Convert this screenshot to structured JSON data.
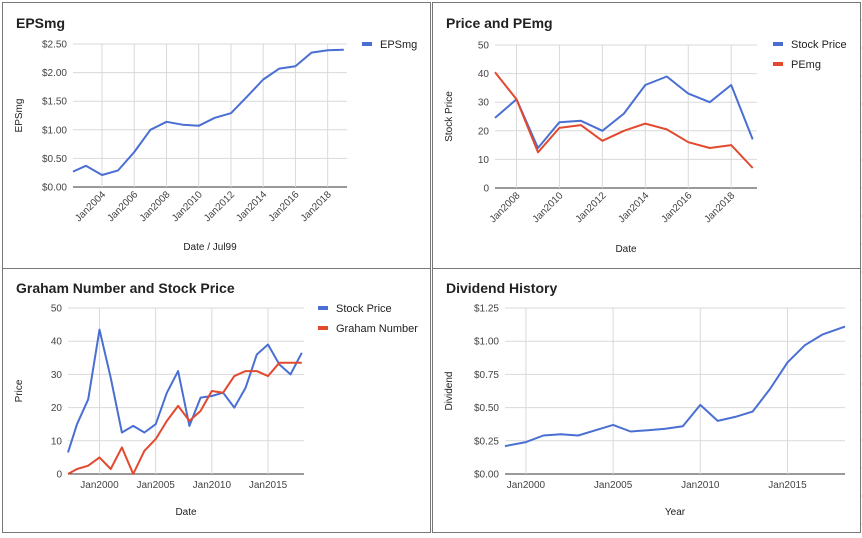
{
  "colors": {
    "blue": "#4a6fd3",
    "red": "#e2492f",
    "grid": "#d9d9d9",
    "border": "#777777"
  },
  "chart_data": [
    {
      "type": "line",
      "title": "EPSmg",
      "xlabel": "Date / Jul99",
      "ylabel": "EPSmg",
      "xlim": [
        2002.2,
        2019.2
      ],
      "ylim": [
        0,
        2.5
      ],
      "y_ticks": [
        {
          "v": 0,
          "label": "$0.00"
        },
        {
          "v": 0.5,
          "label": "$0.50"
        },
        {
          "v": 1,
          "label": "$1.00"
        },
        {
          "v": 1.5,
          "label": "$1.50"
        },
        {
          "v": 2,
          "label": "$2.00"
        },
        {
          "v": 2.5,
          "label": "$2.50"
        }
      ],
      "x_ticks": [
        {
          "v": 2004,
          "label": "Jan2004"
        },
        {
          "v": 2006,
          "label": "Jan2006"
        },
        {
          "v": 2008,
          "label": "Jan2008"
        },
        {
          "v": 2010,
          "label": "Jan2010"
        },
        {
          "v": 2012,
          "label": "Jan2012"
        },
        {
          "v": 2014,
          "label": "Jan2014"
        },
        {
          "v": 2016,
          "label": "Jan2016"
        },
        {
          "v": 2018,
          "label": "Jan2018"
        }
      ],
      "x_tick_rotate": true,
      "legend": "right",
      "series": [
        {
          "name": "EPSmg",
          "color": "#4a6fd3",
          "x": [
            2002.2,
            2003,
            2004,
            2005,
            2006,
            2007,
            2008,
            2009,
            2010,
            2011,
            2012,
            2013,
            2014,
            2015,
            2016,
            2017,
            2018,
            2019
          ],
          "y": [
            0.27,
            0.37,
            0.21,
            0.29,
            0.61,
            1.0,
            1.14,
            1.09,
            1.07,
            1.21,
            1.29,
            1.58,
            1.88,
            2.07,
            2.11,
            2.35,
            2.39,
            2.4
          ]
        }
      ]
    },
    {
      "type": "line",
      "title": "Price and PEmg",
      "xlabel": "Date",
      "ylabel": "Stock Price",
      "xlim": [
        2007,
        2019.2
      ],
      "ylim": [
        0,
        50
      ],
      "y_ticks": [
        {
          "v": 0,
          "label": "0"
        },
        {
          "v": 10,
          "label": "10"
        },
        {
          "v": 20,
          "label": "20"
        },
        {
          "v": 30,
          "label": "30"
        },
        {
          "v": 40,
          "label": "40"
        },
        {
          "v": 50,
          "label": "50"
        }
      ],
      "x_ticks": [
        {
          "v": 2008,
          "label": "Jan2008"
        },
        {
          "v": 2010,
          "label": "Jan2010"
        },
        {
          "v": 2012,
          "label": "Jan2012"
        },
        {
          "v": 2014,
          "label": "Jan2014"
        },
        {
          "v": 2016,
          "label": "Jan2016"
        },
        {
          "v": 2018,
          "label": "Jan2018"
        }
      ],
      "x_tick_rotate": true,
      "legend": "right",
      "series": [
        {
          "name": "Stock Price",
          "color": "#4a6fd3",
          "x": [
            2007,
            2008,
            2009,
            2010,
            2011,
            2012,
            2013,
            2014,
            2015,
            2016,
            2017,
            2018,
            2019
          ],
          "y": [
            24.5,
            31,
            14,
            23,
            23.5,
            20,
            26,
            36,
            39,
            33,
            30,
            36,
            17
          ]
        },
        {
          "name": "PEmg",
          "color": "#e2492f",
          "x": [
            2007,
            2008,
            2009,
            2010,
            2011,
            2012,
            2013,
            2014,
            2015,
            2016,
            2017,
            2018,
            2019
          ],
          "y": [
            40.5,
            31,
            12.5,
            21,
            22,
            16.5,
            20,
            22.5,
            20.5,
            16,
            14,
            15,
            7
          ]
        }
      ]
    },
    {
      "type": "line",
      "title": "Graham Number and Stock Price",
      "xlabel": "Date",
      "ylabel": "Price",
      "xlim": [
        1997.2,
        2018.2
      ],
      "ylim": [
        0,
        50
      ],
      "y_ticks": [
        {
          "v": 0,
          "label": "0"
        },
        {
          "v": 10,
          "label": "10"
        },
        {
          "v": 20,
          "label": "20"
        },
        {
          "v": 30,
          "label": "30"
        },
        {
          "v": 40,
          "label": "40"
        },
        {
          "v": 50,
          "label": "50"
        }
      ],
      "x_ticks": [
        {
          "v": 2000,
          "label": "Jan2000"
        },
        {
          "v": 2005,
          "label": "Jan2005"
        },
        {
          "v": 2010,
          "label": "Jan2010"
        },
        {
          "v": 2015,
          "label": "Jan2015"
        }
      ],
      "x_tick_rotate": false,
      "legend": "right",
      "series": [
        {
          "name": "Stock Price",
          "color": "#4a6fd3",
          "x": [
            1997.2,
            1998,
            1999,
            2000,
            2001,
            2002,
            2003,
            2004,
            2005,
            2006,
            2007,
            2008,
            2009,
            2010,
            2011,
            2012,
            2013,
            2014,
            2015,
            2016,
            2017,
            2018
          ],
          "y": [
            6.5,
            15,
            22.5,
            43.5,
            29,
            12.5,
            14.5,
            12.5,
            15,
            24.5,
            31,
            14.5,
            23,
            23.5,
            24.5,
            20,
            26,
            36,
            39,
            33,
            30,
            36.5
          ]
        },
        {
          "name": "Graham Number",
          "color": "#e2492f",
          "x": [
            1997.2,
            1998,
            1999,
            2000,
            2001,
            2002,
            2003,
            2004,
            2005,
            2006,
            2007,
            2008,
            2009,
            2010,
            2011,
            2012,
            2013,
            2014,
            2015,
            2016,
            2017,
            2018
          ],
          "y": [
            0,
            1.5,
            2.5,
            5,
            1.5,
            8,
            0,
            7,
            10.5,
            16,
            20.5,
            16,
            19,
            25,
            24.5,
            29.5,
            31,
            31,
            29.5,
            33.5,
            33.5,
            33.5
          ]
        }
      ]
    },
    {
      "type": "line",
      "title": "Dividend History",
      "xlabel": "Year",
      "ylabel": "Dividend",
      "xlim": [
        1998.8,
        2018.3
      ],
      "ylim": [
        0,
        1.25
      ],
      "y_ticks": [
        {
          "v": 0,
          "label": "$0.00"
        },
        {
          "v": 0.25,
          "label": "$0.25"
        },
        {
          "v": 0.5,
          "label": "$0.50"
        },
        {
          "v": 0.75,
          "label": "$0.75"
        },
        {
          "v": 1,
          "label": "$1.00"
        },
        {
          "v": 1.25,
          "label": "$1.25"
        }
      ],
      "x_ticks": [
        {
          "v": 2000,
          "label": "Jan2000"
        },
        {
          "v": 2005,
          "label": "Jan2005"
        },
        {
          "v": 2010,
          "label": "Jan2010"
        },
        {
          "v": 2015,
          "label": "Jan2015"
        }
      ],
      "x_tick_rotate": false,
      "legend": "none",
      "series": [
        {
          "name": "",
          "color": "#4a6fd3",
          "x": [
            1998.8,
            2000,
            2001,
            2002,
            2003,
            2004,
            2005,
            2006,
            2007,
            2008,
            2009,
            2010,
            2011,
            2012,
            2013,
            2014,
            2015,
            2016,
            2017,
            2018.3
          ],
          "y": [
            0.21,
            0.24,
            0.29,
            0.3,
            0.29,
            0.33,
            0.37,
            0.32,
            0.33,
            0.34,
            0.36,
            0.52,
            0.4,
            0.43,
            0.47,
            0.64,
            0.84,
            0.97,
            1.05,
            1.11
          ]
        }
      ]
    }
  ]
}
